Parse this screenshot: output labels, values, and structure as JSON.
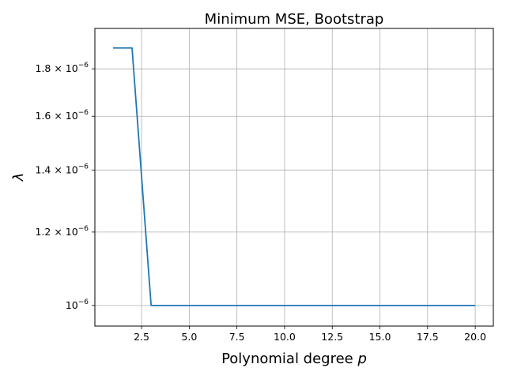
{
  "chart_data": {
    "type": "line",
    "title": "Minimum MSE, Bootstrap",
    "xlabel": "Polynomial degree p",
    "ylabel": "λ",
    "y_scale": "log",
    "grid": "both",
    "xlim": [
      0.05,
      20.95
    ],
    "ylim": [
      9.5e-07,
      1.99e-06
    ],
    "x_ticks": [
      {
        "value": 2.5,
        "label": "2.5"
      },
      {
        "value": 5.0,
        "label": "5.0"
      },
      {
        "value": 7.5,
        "label": "7.5"
      },
      {
        "value": 10.0,
        "label": "10.0"
      },
      {
        "value": 12.5,
        "label": "12.5"
      },
      {
        "value": 15.0,
        "label": "15.0"
      },
      {
        "value": 17.5,
        "label": "17.5"
      },
      {
        "value": 20.0,
        "label": "20.0"
      }
    ],
    "y_ticks": [
      {
        "value": 1e-06,
        "mantissa": "",
        "exp": "−6"
      },
      {
        "value": 1.2e-06,
        "mantissa": "1.2",
        "exp": "−6"
      },
      {
        "value": 1.4e-06,
        "mantissa": "1.4",
        "exp": "−6"
      },
      {
        "value": 1.6e-06,
        "mantissa": "1.6",
        "exp": "−6"
      },
      {
        "value": 1.8e-06,
        "mantissa": "1.8",
        "exp": "−6"
      }
    ],
    "series": [
      {
        "color": "#1f77b4",
        "x": [
          1,
          2,
          3,
          4,
          5,
          6,
          7,
          8,
          9,
          10,
          11,
          12,
          13,
          14,
          15,
          16,
          17,
          18,
          19,
          20
        ],
        "y": [
          1.8957e-06,
          1.8957e-06,
          1e-06,
          1e-06,
          1e-06,
          1e-06,
          1e-06,
          1e-06,
          1e-06,
          1e-06,
          1e-06,
          1e-06,
          1e-06,
          1e-06,
          1e-06,
          1e-06,
          1e-06,
          1e-06,
          1e-06,
          1e-06
        ]
      }
    ]
  }
}
